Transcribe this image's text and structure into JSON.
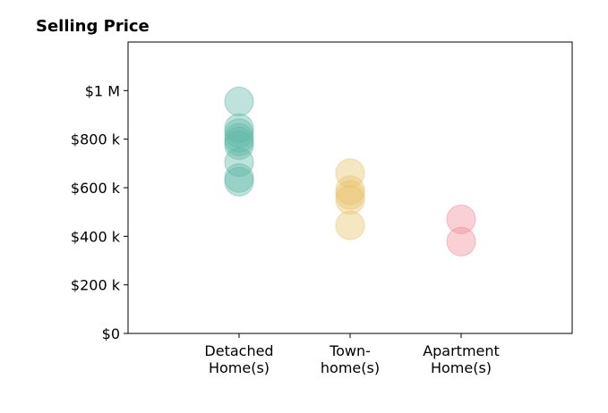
{
  "chart_data": {
    "type": "strip",
    "title": "Selling Price",
    "categories": [
      "Detached\nHome(s)",
      "Town-\nhome(s)",
      "Apartment\nHome(s)"
    ],
    "values": [
      [
        955000,
        845000,
        825000,
        805000,
        790000,
        775000,
        705000,
        640000,
        625000
      ],
      [
        660000,
        590000,
        570000,
        550000,
        445000
      ],
      [
        470000,
        378000
      ]
    ],
    "colors": [
      "#5fb8a8",
      "#e8c36a",
      "#f08a96"
    ],
    "ylim": [
      0,
      1200000
    ],
    "yticks": [
      {
        "value": 0,
        "label": "$0"
      },
      {
        "value": 200000,
        "label": "$200 k"
      },
      {
        "value": 400000,
        "label": "$400 k"
      },
      {
        "value": 600000,
        "label": "$600 k"
      },
      {
        "value": 800000,
        "label": "$800 k"
      },
      {
        "value": 1000000,
        "label": "$1 M"
      }
    ]
  }
}
